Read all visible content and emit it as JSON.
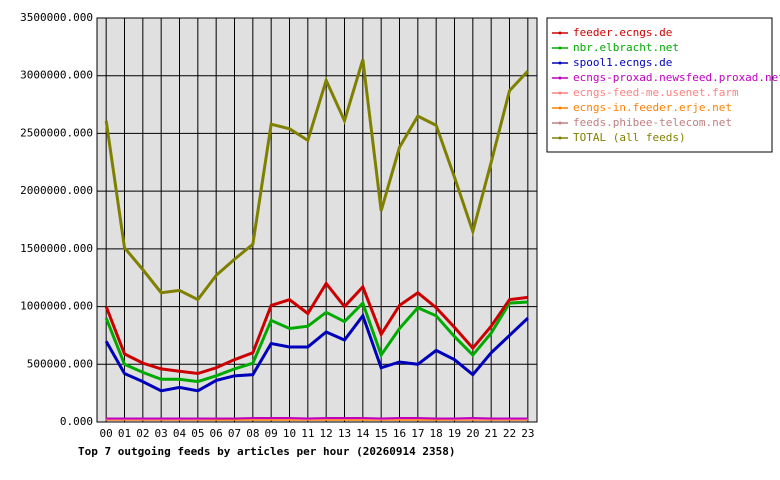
{
  "chart_data": {
    "type": "line",
    "title": "Top 7 outgoing feeds by articles per hour (20260914 2358)",
    "categories": [
      "00",
      "01",
      "02",
      "03",
      "04",
      "05",
      "06",
      "07",
      "08",
      "09",
      "10",
      "11",
      "12",
      "13",
      "14",
      "15",
      "16",
      "17",
      "18",
      "19",
      "20",
      "21",
      "22",
      "23"
    ],
    "ylim": [
      0,
      3500000
    ],
    "yticks": [
      {
        "value": 0,
        "label": "0.000"
      },
      {
        "value": 500000,
        "label": "500000.000"
      },
      {
        "value": 1000000,
        "label": "1000000.000"
      },
      {
        "value": 1500000,
        "label": "1500000.000"
      },
      {
        "value": 2000000,
        "label": "2000000.000"
      },
      {
        "value": 2500000,
        "label": "2500000.000"
      },
      {
        "value": 3000000,
        "label": "3000000.000"
      },
      {
        "value": 3500000,
        "label": "3500000.000"
      }
    ],
    "grid": true,
    "legend": "right",
    "series": [
      {
        "name": "feeder.ecngs.de",
        "color": "#cc0000",
        "values": [
          1000000,
          590000,
          510000,
          460000,
          440000,
          420000,
          470000,
          540000,
          600000,
          1010000,
          1060000,
          940000,
          1200000,
          1000000,
          1170000,
          760000,
          1010000,
          1120000,
          990000,
          820000,
          640000,
          830000,
          1060000,
          1080000
        ]
      },
      {
        "name": "nbr.elbracht.net",
        "color": "#00aa00",
        "values": [
          900000,
          500000,
          430000,
          370000,
          370000,
          350000,
          400000,
          460000,
          510000,
          880000,
          810000,
          830000,
          950000,
          870000,
          1030000,
          580000,
          810000,
          990000,
          920000,
          740000,
          580000,
          770000,
          1030000,
          1040000
        ]
      },
      {
        "name": "spool1.ecngs.de",
        "color": "#0000bb",
        "values": [
          700000,
          420000,
          350000,
          270000,
          300000,
          270000,
          360000,
          400000,
          410000,
          680000,
          650000,
          650000,
          780000,
          710000,
          920000,
          470000,
          520000,
          500000,
          620000,
          540000,
          410000,
          600000,
          750000,
          900000
        ]
      },
      {
        "name": "ecngs-proxad.newsfeed.proxad.net",
        "color": "#c000c0",
        "values": [
          30000,
          30000,
          30000,
          30000,
          30000,
          30000,
          30000,
          30000,
          35000,
          35000,
          35000,
          30000,
          35000,
          35000,
          35000,
          30000,
          35000,
          35000,
          30000,
          30000,
          35000,
          30000,
          30000,
          30000
        ]
      },
      {
        "name": "ecngs-feed-me.usenet.farm",
        "color": "#ff8080",
        "values": [
          25000,
          25000,
          25000,
          25000,
          25000,
          25000,
          30000,
          30000,
          30000,
          30000,
          30000,
          25000,
          30000,
          30000,
          30000,
          25000,
          30000,
          30000,
          30000,
          25000,
          25000,
          25000,
          25000,
          25000
        ]
      },
      {
        "name": "ecngs-in.feeder.erje.net",
        "color": "#ff8000",
        "values": [
          20000,
          20000,
          20000,
          20000,
          20000,
          20000,
          20000,
          20000,
          20000,
          20000,
          20000,
          20000,
          20000,
          20000,
          20000,
          20000,
          20000,
          20000,
          20000,
          20000,
          20000,
          20000,
          20000,
          20000
        ]
      },
      {
        "name": "feeds.phibee-telecom.net",
        "color": "#c08080",
        "values": [
          25000,
          25000,
          25000,
          25000,
          25000,
          25000,
          25000,
          25000,
          25000,
          25000,
          25000,
          25000,
          25000,
          25000,
          25000,
          25000,
          25000,
          25000,
          25000,
          25000,
          25000,
          25000,
          25000,
          25000
        ]
      },
      {
        "name": "TOTAL (all feeds)",
        "color": "#808000",
        "values": [
          2610000,
          1510000,
          1320000,
          1120000,
          1140000,
          1060000,
          1270000,
          1410000,
          1540000,
          2580000,
          2540000,
          2440000,
          2960000,
          2610000,
          3140000,
          1830000,
          2380000,
          2650000,
          2570000,
          2120000,
          1650000,
          2250000,
          2870000,
          3040000
        ]
      }
    ]
  }
}
